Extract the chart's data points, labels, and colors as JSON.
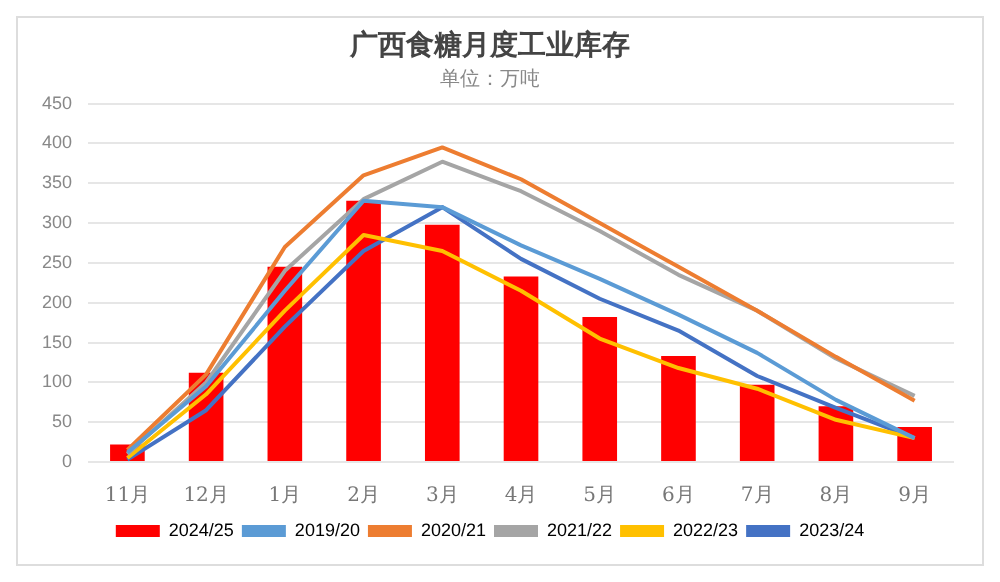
{
  "chart_data": {
    "type": "bar",
    "title": "广西食糖月度工业库存",
    "subtitle": "单位：万吨",
    "categories": [
      "11月",
      "12月",
      "1月",
      "2月",
      "3月",
      "4月",
      "5月",
      "6月",
      "7月",
      "8月",
      "9月"
    ],
    "series": [
      {
        "name": "2024/25",
        "color": "#ff0000",
        "values": [
          22,
          112,
          245,
          328,
          298,
          233,
          182,
          133,
          97,
          70,
          44
        ]
      },
      {
        "name": "2019/20",
        "type": "line",
        "color": "#5b9bd5",
        "values": [
          12,
          95,
          215,
          328,
          320,
          272,
          230,
          185,
          137,
          78,
          30
        ]
      },
      {
        "name": "2020/21",
        "type": "line",
        "color": "#ed7d31",
        "values": [
          15,
          110,
          270,
          360,
          395,
          355,
          300,
          245,
          190,
          132,
          77
        ]
      },
      {
        "name": "2021/22",
        "type": "line",
        "color": "#a5a5a5",
        "values": [
          10,
          100,
          240,
          330,
          377,
          340,
          290,
          235,
          190,
          130,
          83
        ]
      },
      {
        "name": "2022/23",
        "type": "line",
        "color": "#ffc000",
        "values": [
          5,
          85,
          190,
          285,
          265,
          215,
          155,
          118,
          92,
          53,
          30
        ]
      },
      {
        "name": "2023/24",
        "type": "line",
        "color": "#4472c4",
        "values": [
          3,
          65,
          170,
          265,
          320,
          255,
          205,
          165,
          108,
          68,
          30
        ]
      }
    ],
    "ylim": [
      0,
      450
    ],
    "yticks": [
      0,
      50,
      100,
      150,
      200,
      250,
      300,
      350,
      400,
      450
    ],
    "grid": "y",
    "legend": "bottom",
    "marker": "none",
    "line_style": "solid"
  }
}
